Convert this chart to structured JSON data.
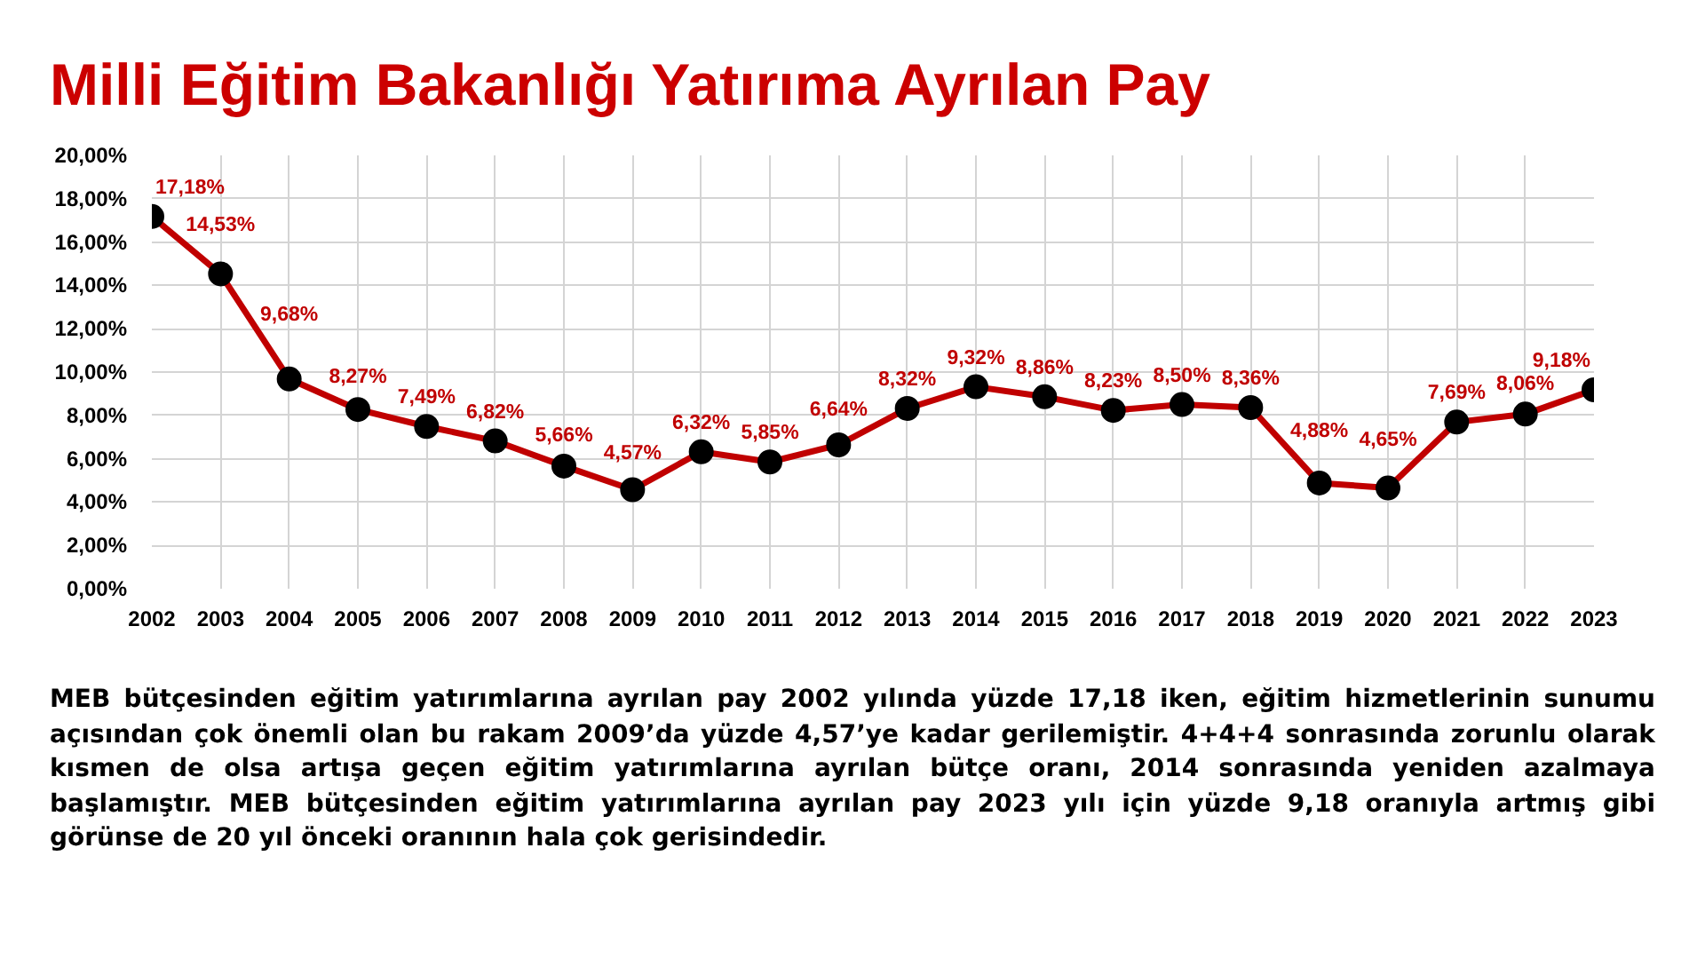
{
  "chart_data": {
    "type": "line",
    "title": "Milli Eğitim Bakanlığı Yatırıma Ayrılan Pay",
    "x": [
      2002,
      2003,
      2004,
      2005,
      2006,
      2007,
      2008,
      2009,
      2010,
      2011,
      2012,
      2013,
      2014,
      2015,
      2016,
      2017,
      2018,
      2019,
      2020,
      2021,
      2022,
      2023
    ],
    "series": [
      {
        "color": "#c00000",
        "values": [
          17.18,
          14.53,
          9.68,
          8.27,
          7.49,
          6.82,
          5.66,
          4.57,
          6.32,
          5.85,
          6.64,
          8.32,
          9.32,
          8.86,
          8.23,
          8.5,
          8.36,
          4.88,
          4.65,
          7.69,
          8.06,
          9.18
        ],
        "value_labels": [
          "17,18%",
          "14,53%",
          "9,68%",
          "8,27%",
          "7,49%",
          "6,82%",
          "5,66%",
          "4,57%",
          "6,32%",
          "5,85%",
          "6,64%",
          "8,32%",
          "9,32%",
          "8,86%",
          "8,23%",
          "8,50%",
          "8,36%",
          "4,88%",
          "4,65%",
          "7,69%",
          "8,06%",
          "9,18%"
        ]
      }
    ],
    "xlim": [
      2002,
      2023
    ],
    "xticks": [
      2002,
      2003,
      2004,
      2005,
      2006,
      2007,
      2008,
      2009,
      2010,
      2011,
      2012,
      2013,
      2014,
      2015,
      2016,
      2017,
      2018,
      2019,
      2020,
      2021,
      2022,
      2023
    ],
    "ylim": [
      0,
      20
    ],
    "yticks": [
      {
        "value": 0,
        "label": "0,00%"
      },
      {
        "value": 2,
        "label": "2,00%"
      },
      {
        "value": 4,
        "label": "4,00%"
      },
      {
        "value": 6,
        "label": "6,00%"
      },
      {
        "value": 8,
        "label": "8,00%"
      },
      {
        "value": 10,
        "label": "10,00%"
      },
      {
        "value": 12,
        "label": "12,00%"
      },
      {
        "value": 14,
        "label": "14,00%"
      },
      {
        "value": 16,
        "label": "16,00%"
      },
      {
        "value": 18,
        "label": "18,00%"
      },
      {
        "value": 20,
        "label": "20,00%"
      }
    ],
    "grid": true,
    "marker": "circle",
    "line_style": "solid",
    "annotations": [
      "MEB bütçesinden eğitim yatırımlarına ayrılan pay 2002 yılında yüzde 17,18 iken, eğitim hizmetlerinin sunumu açısından çok önemli olan bu rakam 2009’da yüzde 4,57’ye kadar gerilemiştir. 4+4+4 sonrasında zorunlu olarak kısmen de olsa artışa geçen eğitim yatırımlarına ayrılan bütçe oranı, 2014 sonrasında yeniden azalmaya başlamıştır. MEB bütçesinden eğitim yatırımlarına ayrılan pay 2023 yılı için yüzde 9,18 oranıyla artmış gibi görünse de 20 yıl önceki oranının hala çok gerisindedir."
    ]
  }
}
